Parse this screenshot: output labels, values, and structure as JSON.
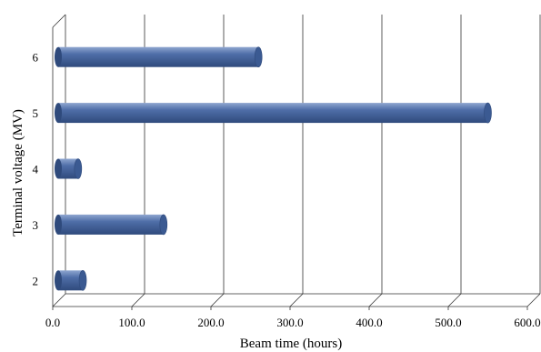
{
  "chart_data": {
    "type": "bar",
    "orientation": "horizontal",
    "style": "3d-cylinder",
    "categories": [
      "2",
      "3",
      "4",
      "5",
      "6"
    ],
    "values": [
      38,
      140,
      32,
      550,
      260
    ],
    "xlabel": "Beam time (hours)",
    "ylabel": "Terminal voltage (MV)",
    "xlim": [
      0,
      600
    ],
    "xticks": [
      "0.0",
      "100.0",
      "200.0",
      "300.0",
      "400.0",
      "500.0",
      "600.0"
    ],
    "grid": true,
    "legend": "none",
    "colors": {
      "bar": "#4f6ea8",
      "bar_light": "#8fa6d0",
      "bar_dark": "#2f4a7c",
      "cap": "#3b5a92",
      "grid": "#333333"
    }
  }
}
